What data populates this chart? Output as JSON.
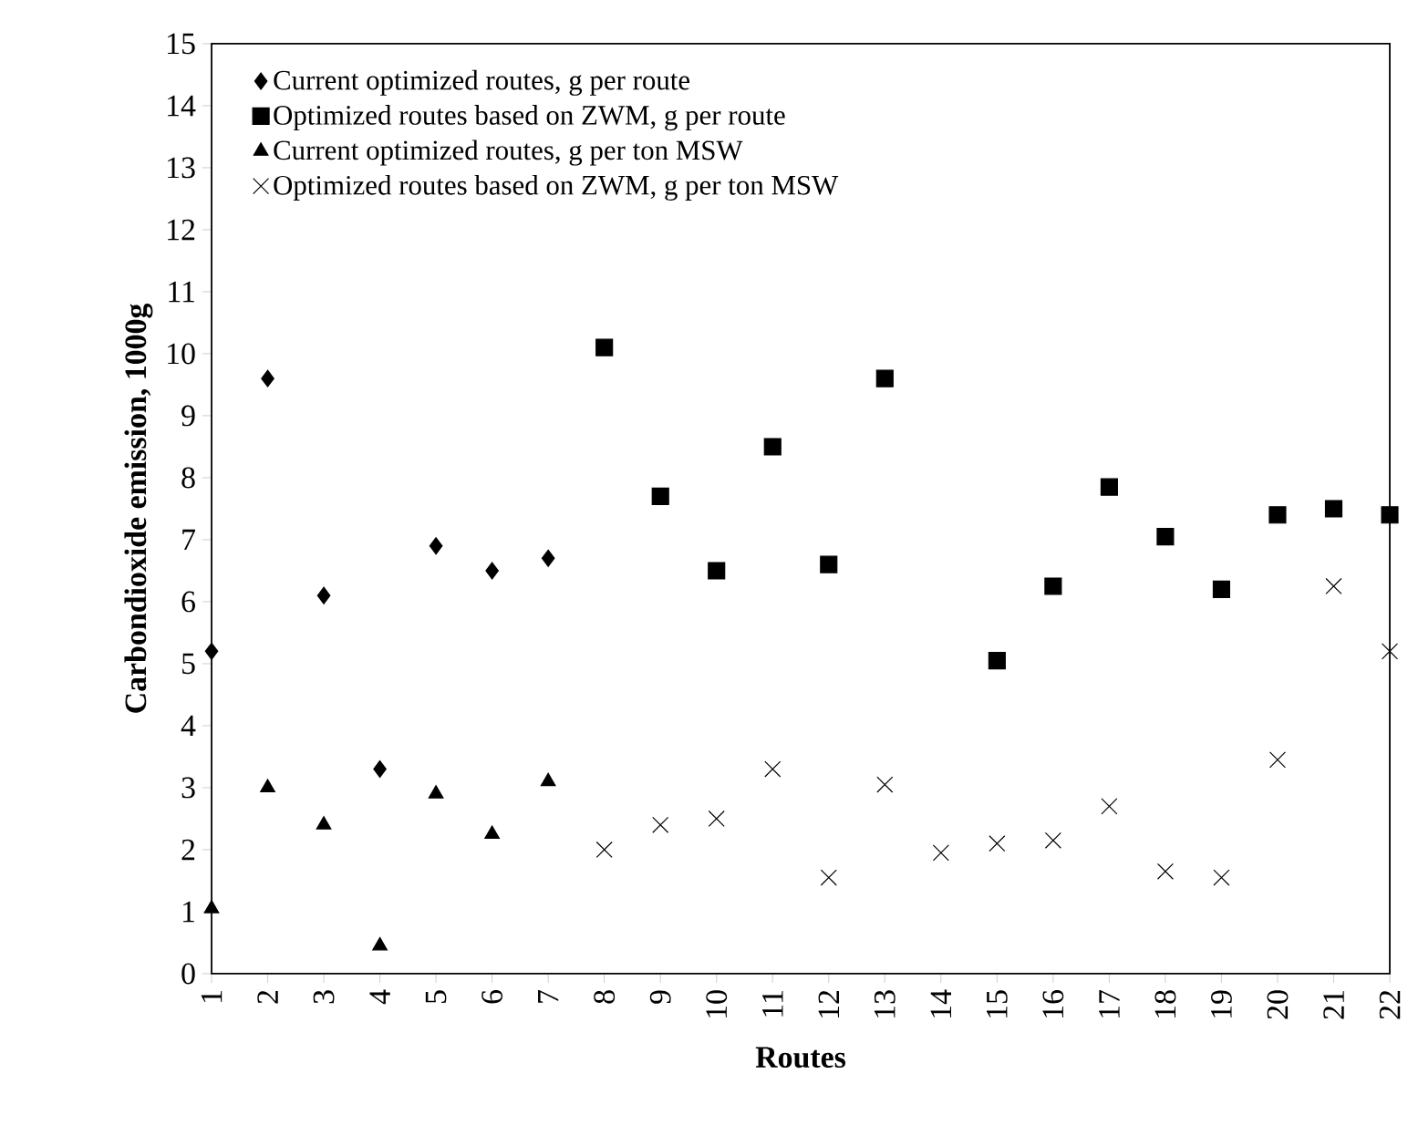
{
  "chart_data": {
    "type": "scatter",
    "xlabel": "Routes",
    "ylabel": "Carbondioxide emission, 1000g",
    "xlim": [
      1,
      22
    ],
    "xticks": [
      1,
      2,
      3,
      4,
      5,
      6,
      7,
      8,
      9,
      10,
      11,
      12,
      13,
      14,
      15,
      16,
      17,
      18,
      19,
      20,
      21,
      22
    ],
    "ylim": [
      0,
      15
    ],
    "yticks": [
      0,
      1,
      2,
      3,
      4,
      5,
      6,
      7,
      8,
      9,
      10,
      11,
      12,
      13,
      14,
      15
    ],
    "legend": "top left",
    "series": [
      {
        "name": "Current optimized routes, g per route",
        "color": "#000000",
        "marker": "diamond",
        "x": [
          1,
          2,
          3,
          4,
          5,
          6,
          7
        ],
        "values": [
          5.2,
          9.6,
          6.1,
          3.3,
          6.9,
          6.5,
          6.7
        ]
      },
      {
        "name": "Optimized routes based on ZWM, g per route",
        "color": "#000000",
        "marker": "square",
        "x": [
          8,
          9,
          10,
          11,
          12,
          13,
          14,
          15,
          16,
          17,
          18,
          19,
          20,
          21,
          22
        ],
        "values": [
          10.1,
          7.7,
          6.5,
          8.5,
          6.6,
          9.6,
          null,
          5.05,
          6.25,
          7.85,
          7.05,
          6.2,
          7.4,
          7.5,
          7.4
        ]
      },
      {
        "name": "Current optimized routes, g per ton MSW",
        "color": "#000000",
        "marker": "triangle",
        "x": [
          1,
          2,
          3,
          4,
          5,
          6,
          7
        ],
        "values": [
          1.05,
          3.0,
          2.4,
          0.45,
          2.9,
          2.25,
          3.1
        ]
      },
      {
        "name": "Optimized routes based on ZWM, g per ton MSW",
        "color": "#000000",
        "marker": "cross",
        "x": [
          8,
          9,
          10,
          11,
          12,
          13,
          14,
          15,
          16,
          17,
          18,
          19,
          20,
          21,
          22
        ],
        "values": [
          2.0,
          2.4,
          2.5,
          3.3,
          1.55,
          3.05,
          1.95,
          2.1,
          2.15,
          2.7,
          1.65,
          1.55,
          3.45,
          6.25,
          5.2
        ]
      }
    ]
  }
}
